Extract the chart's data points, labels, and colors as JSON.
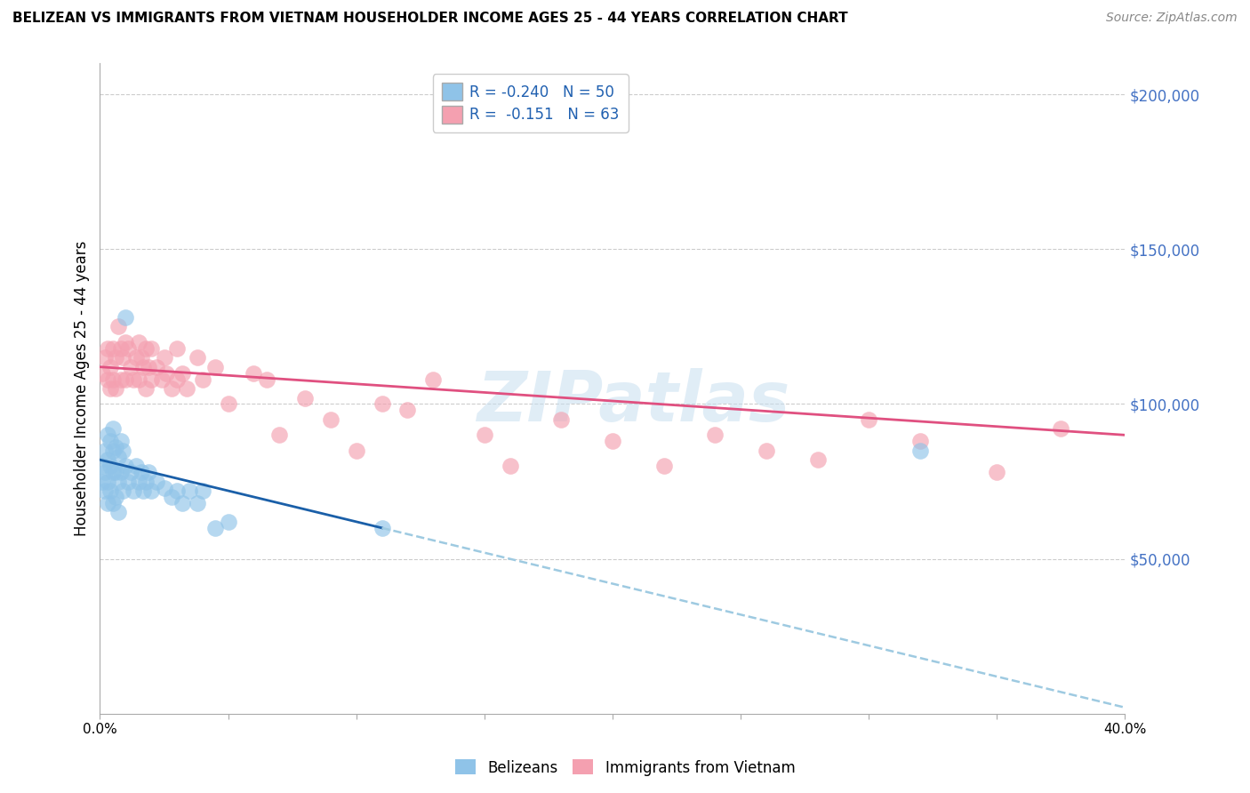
{
  "title": "BELIZEAN VS IMMIGRANTS FROM VIETNAM HOUSEHOLDER INCOME AGES 25 - 44 YEARS CORRELATION CHART",
  "source": "Source: ZipAtlas.com",
  "ylabel": "Householder Income Ages 25 - 44 years",
  "xmin": 0.0,
  "xmax": 0.4,
  "ymin": 0,
  "ymax": 210000,
  "xticks": [
    0.0,
    0.05,
    0.1,
    0.15,
    0.2,
    0.25,
    0.3,
    0.35,
    0.4
  ],
  "ytick_vals_right": [
    50000,
    100000,
    150000,
    200000
  ],
  "ytick_labels_right": [
    "$50,000",
    "$100,000",
    "$150,000",
    "$200,000"
  ],
  "legend_R_blue": "-0.240",
  "legend_N_blue": "50",
  "legend_R_pink": "-0.151",
  "legend_N_pink": "63",
  "blue_color": "#8fc3e8",
  "pink_color": "#f4a0b0",
  "blue_line_color": "#1a5fa8",
  "pink_line_color": "#e05080",
  "dashed_line_color": "#9ecae1",
  "watermark": "ZIPatlas",
  "blue_x": [
    0.001,
    0.001,
    0.002,
    0.002,
    0.002,
    0.003,
    0.003,
    0.003,
    0.003,
    0.004,
    0.004,
    0.004,
    0.005,
    0.005,
    0.005,
    0.005,
    0.006,
    0.006,
    0.006,
    0.007,
    0.007,
    0.007,
    0.008,
    0.008,
    0.009,
    0.009,
    0.01,
    0.01,
    0.011,
    0.012,
    0.013,
    0.014,
    0.015,
    0.016,
    0.017,
    0.018,
    0.019,
    0.02,
    0.022,
    0.025,
    0.028,
    0.03,
    0.032,
    0.035,
    0.038,
    0.04,
    0.045,
    0.05,
    0.32,
    0.11
  ],
  "blue_y": [
    80000,
    75000,
    85000,
    78000,
    72000,
    90000,
    82000,
    75000,
    68000,
    88000,
    80000,
    72000,
    92000,
    85000,
    78000,
    68000,
    86000,
    78000,
    70000,
    83000,
    75000,
    65000,
    88000,
    78000,
    85000,
    72000,
    128000,
    80000,
    75000,
    78000,
    72000,
    80000,
    75000,
    78000,
    72000,
    75000,
    78000,
    72000,
    75000,
    73000,
    70000,
    72000,
    68000,
    72000,
    68000,
    72000,
    60000,
    62000,
    85000,
    60000
  ],
  "pink_x": [
    0.001,
    0.002,
    0.003,
    0.003,
    0.004,
    0.004,
    0.005,
    0.005,
    0.006,
    0.006,
    0.007,
    0.008,
    0.008,
    0.009,
    0.01,
    0.01,
    0.011,
    0.012,
    0.013,
    0.014,
    0.015,
    0.015,
    0.016,
    0.017,
    0.018,
    0.018,
    0.019,
    0.02,
    0.02,
    0.022,
    0.024,
    0.025,
    0.026,
    0.028,
    0.03,
    0.03,
    0.032,
    0.034,
    0.038,
    0.04,
    0.045,
    0.05,
    0.06,
    0.065,
    0.07,
    0.08,
    0.09,
    0.1,
    0.11,
    0.12,
    0.13,
    0.15,
    0.16,
    0.18,
    0.2,
    0.22,
    0.24,
    0.26,
    0.28,
    0.3,
    0.32,
    0.35,
    0.375
  ],
  "pink_y": [
    110000,
    115000,
    108000,
    118000,
    112000,
    105000,
    118000,
    108000,
    115000,
    105000,
    125000,
    118000,
    108000,
    115000,
    120000,
    108000,
    118000,
    112000,
    108000,
    115000,
    120000,
    108000,
    115000,
    112000,
    118000,
    105000,
    112000,
    118000,
    108000,
    112000,
    108000,
    115000,
    110000,
    105000,
    108000,
    118000,
    110000,
    105000,
    115000,
    108000,
    112000,
    100000,
    110000,
    108000,
    90000,
    102000,
    95000,
    85000,
    100000,
    98000,
    108000,
    90000,
    80000,
    95000,
    88000,
    80000,
    90000,
    85000,
    82000,
    95000,
    88000,
    78000,
    92000
  ]
}
